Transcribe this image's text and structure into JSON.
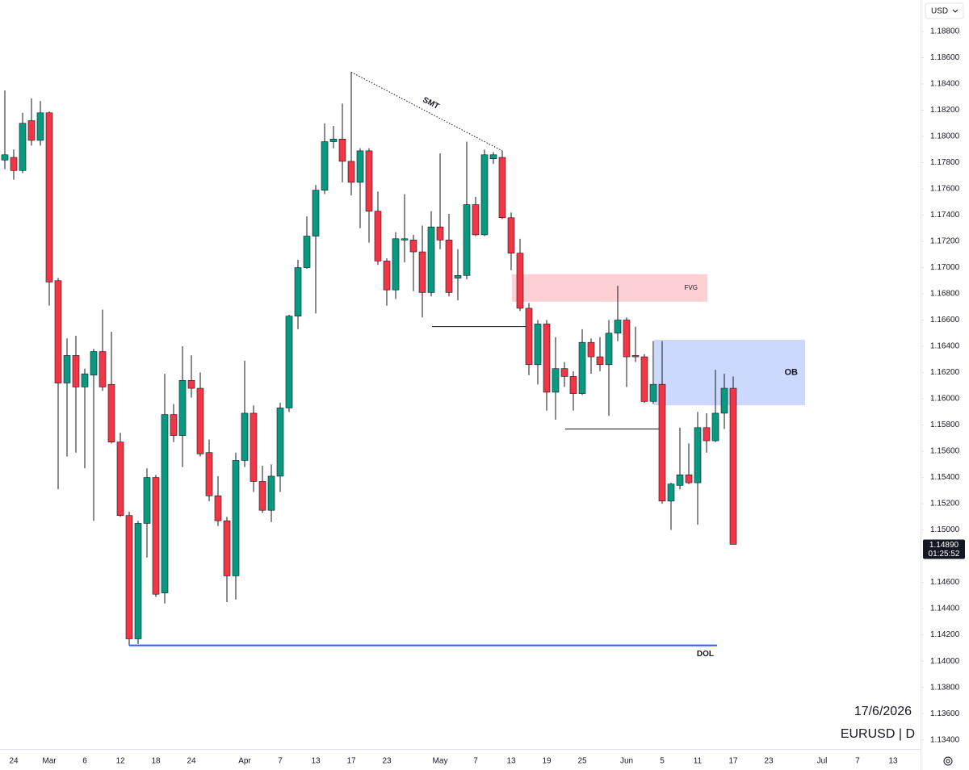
{
  "chart_data": {
    "type": "candlestick",
    "currency": "USD",
    "date": "17/6/2026",
    "symbol": "EURUSD | D",
    "up_color": "#089981",
    "down_color": "#f23645",
    "ylim": [
      1.1333,
      1.1904
    ],
    "yticks": [
      {
        "value": 1.188,
        "label": "1.18800"
      },
      {
        "value": 1.186,
        "label": "1.18600"
      },
      {
        "value": 1.184,
        "label": "1.18400"
      },
      {
        "value": 1.182,
        "label": "1.18200"
      },
      {
        "value": 1.18,
        "label": "1.18000"
      },
      {
        "value": 1.178,
        "label": "1.17800"
      },
      {
        "value": 1.176,
        "label": "1.17600"
      },
      {
        "value": 1.174,
        "label": "1.17400"
      },
      {
        "value": 1.172,
        "label": "1.17200"
      },
      {
        "value": 1.17,
        "label": "1.17000"
      },
      {
        "value": 1.168,
        "label": "1.16800"
      },
      {
        "value": 1.166,
        "label": "1.16600"
      },
      {
        "value": 1.164,
        "label": "1.16400"
      },
      {
        "value": 1.162,
        "label": "1.16200"
      },
      {
        "value": 1.16,
        "label": "1.16000"
      },
      {
        "value": 1.158,
        "label": "1.15800"
      },
      {
        "value": 1.156,
        "label": "1.15600"
      },
      {
        "value": 1.154,
        "label": "1.15400"
      },
      {
        "value": 1.152,
        "label": "1.15200"
      },
      {
        "value": 1.15,
        "label": "1.15000"
      },
      {
        "value": 1.148,
        "label": "1.14800"
      },
      {
        "value": 1.146,
        "label": "1.14600"
      },
      {
        "value": 1.144,
        "label": "1.14400"
      },
      {
        "value": 1.142,
        "label": "1.14200"
      },
      {
        "value": 1.14,
        "label": "1.14000"
      },
      {
        "value": 1.138,
        "label": "1.13800"
      },
      {
        "value": 1.136,
        "label": "1.13600"
      },
      {
        "value": 1.134,
        "label": "1.13400"
      }
    ],
    "categories": [
      null,
      "24",
      null,
      null,
      null,
      "Mar",
      null,
      null,
      null,
      "6",
      null,
      null,
      null,
      "12",
      null,
      null,
      null,
      "18",
      null,
      null,
      null,
      "24",
      null,
      null,
      null,
      null,
      null,
      "Apr",
      null,
      null,
      null,
      "7",
      null,
      null,
      null,
      "13",
      null,
      null,
      null,
      "17",
      null,
      null,
      null,
      "23",
      null,
      null,
      null,
      null,
      null,
      "May",
      null,
      null,
      null,
      "7",
      null,
      null,
      null,
      "13",
      null,
      null,
      null,
      "19",
      null,
      null,
      null,
      "25",
      null,
      null,
      null,
      null,
      "Jun",
      null,
      null,
      null,
      "5",
      null,
      null,
      null,
      "11",
      null,
      null,
      null,
      "17",
      null,
      null,
      null,
      "23",
      null,
      null,
      null,
      null,
      null,
      "Jul",
      null,
      null,
      null,
      "7",
      null,
      null,
      null,
      "13"
    ],
    "open": [
      1.1782,
      1.1784,
      1.1774,
      1.1812,
      1.1797,
      1.1818,
      1.169,
      1.1612,
      1.1633,
      1.1609,
      1.1618,
      1.1636,
      1.1611,
      1.1567,
      1.1511,
      1.1417,
      1.1505,
      1.154,
      1.1452,
      1.1588,
      1.1572,
      1.1614,
      1.1608,
      1.1559,
      1.1526,
      1.1507,
      1.1465,
      1.1553,
      1.1589,
      1.1537,
      1.1515,
      1.1541,
      1.1593,
      1.1663,
      1.17,
      1.1724,
      1.1759,
      1.1796,
      1.1798,
      1.1781,
      1.1765,
      1.1789,
      1.1743,
      1.1705,
      1.1683,
      1.1721,
      1.1721,
      1.1712,
      1.1681,
      1.1731,
      1.1721,
      1.1692,
      1.1694,
      1.1748,
      1.1725,
      1.1783,
      1.1784,
      1.1738,
      1.1711,
      1.1669,
      1.1626,
      1.1657,
      1.1605,
      1.1623,
      1.1617,
      1.1604,
      1.1643,
      1.1632,
      1.1626,
      1.165,
      1.166,
      1.1633,
      1.1632,
      1.1598,
      1.1611,
      1.1522,
      1.1534,
      1.1542,
      1.1536,
      1.1578,
      1.1568,
      1.1589,
      1.1608,
      null,
      null,
      null,
      null,
      null,
      null,
      null,
      null,
      null,
      null,
      null,
      null,
      null,
      null,
      null,
      null,
      null,
      null
    ],
    "high": [
      1.1835,
      1.179,
      1.1818,
      1.1829,
      1.1827,
      1.1819,
      1.1692,
      1.1646,
      1.1648,
      1.1623,
      1.1638,
      1.1668,
      1.1651,
      1.1574,
      1.1514,
      1.1507,
      1.1547,
      1.1542,
      1.1619,
      1.1596,
      1.164,
      1.1633,
      1.162,
      1.1569,
      1.1541,
      1.151,
      1.1559,
      1.1629,
      1.1595,
      1.1549,
      1.155,
      1.1597,
      1.1664,
      1.1706,
      1.1739,
      1.1763,
      1.181,
      1.1808,
      1.1825,
      1.1849,
      1.1791,
      1.1791,
      1.1758,
      1.1707,
      1.1727,
      1.1756,
      1.1725,
      1.1732,
      1.1743,
      1.1787,
      1.1741,
      1.1714,
      1.1796,
      1.1754,
      1.179,
      1.1788,
      1.1789,
      1.1742,
      1.1722,
      1.1673,
      1.166,
      1.166,
      1.1647,
      1.1628,
      1.1621,
      1.1653,
      1.1646,
      1.1647,
      1.166,
      1.1686,
      1.1662,
      1.1655,
      1.1634,
      1.1644,
      1.1644,
      1.1536,
      1.1578,
      1.1566,
      1.159,
      1.1589,
      1.1622,
      1.1619,
      1.1617,
      null,
      null,
      null,
      null,
      null,
      null,
      null,
      null,
      null,
      null,
      null,
      null,
      null,
      null,
      null,
      null,
      null,
      null
    ],
    "low": [
      1.1775,
      1.1767,
      1.1772,
      1.1793,
      1.1793,
      1.1671,
      1.1531,
      1.1556,
      1.1559,
      1.1547,
      1.1507,
      1.1606,
      1.1566,
      1.151,
      1.1412,
      1.1413,
      1.1479,
      1.1449,
      1.1444,
      1.1567,
      1.1548,
      1.1601,
      1.1556,
      1.1522,
      1.1503,
      1.1445,
      1.1447,
      1.1548,
      1.1529,
      1.1513,
      1.1506,
      1.1529,
      1.159,
      1.1653,
      1.1699,
      1.1665,
      1.1756,
      1.1791,
      1.1765,
      1.1755,
      1.173,
      1.1719,
      1.1702,
      1.1671,
      1.1676,
      1.1704,
      1.1682,
      1.1662,
      1.1678,
      1.1714,
      1.1678,
      1.1675,
      1.1691,
      1.1724,
      1.1724,
      1.1779,
      1.1737,
      1.1698,
      1.1667,
      1.1618,
      1.1611,
      1.1591,
      1.1584,
      1.1609,
      1.1591,
      1.1603,
      1.1619,
      1.1621,
      1.1587,
      1.1644,
      1.1609,
      1.1628,
      1.1597,
      1.1596,
      1.152,
      1.15,
      1.1531,
      1.1535,
      1.1504,
      1.1559,
      1.1567,
      1.1577,
      1.1489,
      null,
      null,
      null,
      null,
      null,
      null,
      null,
      null,
      null,
      null,
      null,
      null,
      null,
      null,
      null,
      null,
      null,
      null
    ],
    "close": [
      1.1786,
      1.1774,
      1.181,
      1.1797,
      1.1818,
      1.1689,
      1.1612,
      1.1633,
      1.1609,
      1.1619,
      1.1636,
      1.1609,
      1.1567,
      1.1511,
      1.1417,
      1.1505,
      1.154,
      1.1451,
      1.1588,
      1.1572,
      1.1614,
      1.1608,
      1.1558,
      1.1526,
      1.1507,
      1.1465,
      1.1553,
      1.1589,
      1.1537,
      1.1515,
      1.1541,
      1.1593,
      1.1663,
      1.17,
      1.1724,
      1.1759,
      1.1796,
      1.1798,
      1.1781,
      1.1765,
      1.1789,
      1.1743,
      1.1705,
      1.1683,
      1.1722,
      1.1722,
      1.1712,
      1.1681,
      1.1731,
      1.1721,
      1.1681,
      1.1694,
      1.1748,
      1.1725,
      1.1786,
      1.1786,
      1.1738,
      1.1711,
      1.1669,
      1.1626,
      1.1657,
      1.1605,
      1.1623,
      1.1617,
      1.1604,
      1.1643,
      1.1632,
      1.1626,
      1.165,
      1.166,
      1.1632,
      1.1632,
      1.1598,
      1.1611,
      1.1522,
      1.1535,
      1.1542,
      1.1536,
      1.1578,
      1.1568,
      1.1589,
      1.1608,
      1.1489,
      null,
      null,
      null,
      null,
      null,
      null,
      null,
      null,
      null,
      null,
      null,
      null,
      null,
      null,
      null,
      null,
      null,
      null
    ],
    "zones": [
      {
        "label": "FVG",
        "top": 1.1695,
        "bottom": 1.1674,
        "color": "#fccbce"
      },
      {
        "label": "OB",
        "top": 1.1645,
        "bottom": 1.1595,
        "color": "#c6d4fc"
      }
    ],
    "dol": {
      "label": "DOL",
      "value": 1.1412,
      "color": "#2962ff"
    },
    "smt": {
      "label": "SMT",
      "from": 1.1849,
      "to": 1.1789
    },
    "levels": [
      1.1655,
      1.1577
    ],
    "last_price": {
      "value": 1.1489,
      "label": "1.14890"
    },
    "countdown": "01:25:52"
  }
}
